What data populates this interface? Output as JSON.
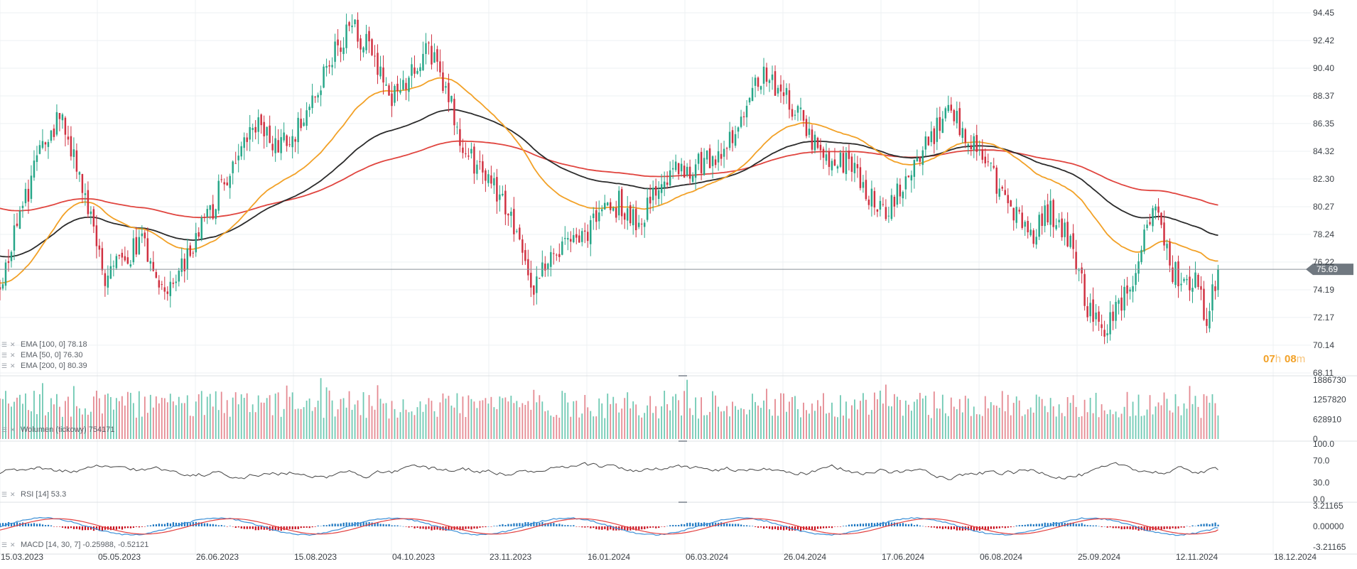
{
  "indicators": {
    "ema100_label": "EMA [100, 0] 78.18",
    "ema50_label": "EMA [50, 0] 76.30",
    "ema200_label": "EMA [200, 0] 80.39",
    "volume_label": "Wolumen (tickowy) 754171",
    "rsi_label": "RSI [14] 53.3",
    "macd_label": "MACD [14, 30, 7] -0.25988, -0.52121"
  },
  "countdown": {
    "hours": "07",
    "h": "h",
    "minutes": "08",
    "m": "m"
  },
  "colors": {
    "up": "#26a688",
    "down": "#d03040",
    "ema50": "#f2a127",
    "ema100": "#2b2b2b",
    "ema200": "#e0453f",
    "grid": "#eef0f3",
    "price_badge": "#707880",
    "macd_hist_pos": "#1f78c1",
    "macd_hist_neg": "#c8101e",
    "macd_line": "#3b8fd6",
    "signal_line": "#e24040"
  },
  "chart_data": [
    {
      "type": "candlestick",
      "name": "price",
      "y_ticks": [
        "94.45",
        "92.42",
        "90.40",
        "88.37",
        "86.35",
        "84.32",
        "82.30",
        "80.27",
        "78.24",
        "76.22",
        "74.19",
        "72.17",
        "70.14",
        "68.11"
      ],
      "y_range": [
        68.11,
        94.45
      ],
      "x_ticks": [
        "15.03.2023",
        "05.05.2023",
        "26.06.2023",
        "15.08.2023",
        "04.10.2023",
        "23.11.2023",
        "16.01.2024",
        "06.03.2024",
        "26.04.2024",
        "17.06.2024",
        "06.08.2024",
        "25.09.2024",
        "12.11.2024",
        "18.12.2024"
      ],
      "x_range": [
        "2023-03-15",
        "2024-12-18"
      ],
      "last_price": "75.69",
      "price_path": [
        [
          "2023-03-15",
          74.5
        ],
        [
          "2023-03-25",
          79.5
        ],
        [
          "2023-04-05",
          85.0
        ],
        [
          "2023-04-15",
          86.8
        ],
        [
          "2023-04-25",
          82.0
        ],
        [
          "2023-05-05",
          75.0
        ],
        [
          "2023-05-15",
          76.5
        ],
        [
          "2023-05-25",
          77.5
        ],
        [
          "2023-06-05",
          73.5
        ],
        [
          "2023-06-15",
          76.5
        ],
        [
          "2023-06-26",
          79.5
        ],
        [
          "2023-07-10",
          84.0
        ],
        [
          "2023-07-20",
          86.5
        ],
        [
          "2023-08-01",
          84.5
        ],
        [
          "2023-08-15",
          87.0
        ],
        [
          "2023-08-25",
          91.0
        ],
        [
          "2023-09-05",
          93.5
        ],
        [
          "2023-09-15",
          91.5
        ],
        [
          "2023-09-25",
          88.0
        ],
        [
          "2023-10-04",
          89.5
        ],
        [
          "2023-10-14",
          92.0
        ],
        [
          "2023-10-24",
          88.0
        ],
        [
          "2023-11-01",
          84.0
        ],
        [
          "2023-11-10",
          82.5
        ],
        [
          "2023-11-23",
          80.0
        ],
        [
          "2023-12-05",
          74.5
        ],
        [
          "2023-12-15",
          77.0
        ],
        [
          "2023-12-28",
          77.5
        ],
        [
          "2024-01-05",
          79.5
        ],
        [
          "2024-01-16",
          80.5
        ],
        [
          "2024-01-26",
          79.0
        ],
        [
          "2024-02-05",
          82.0
        ],
        [
          "2024-02-15",
          83.0
        ],
        [
          "2024-02-25",
          83.5
        ],
        [
          "2024-03-06",
          84.0
        ],
        [
          "2024-03-16",
          86.0
        ],
        [
          "2024-03-26",
          90.0
        ],
        [
          "2024-04-05",
          89.0
        ],
        [
          "2024-04-16",
          86.5
        ],
        [
          "2024-04-26",
          84.0
        ],
        [
          "2024-05-06",
          83.5
        ],
        [
          "2024-05-16",
          82.0
        ],
        [
          "2024-05-26",
          79.5
        ],
        [
          "2024-06-06",
          82.5
        ],
        [
          "2024-06-17",
          85.0
        ],
        [
          "2024-06-27",
          87.0
        ],
        [
          "2024-07-07",
          85.5
        ],
        [
          "2024-07-17",
          83.0
        ],
        [
          "2024-07-27",
          80.5
        ],
        [
          "2024-08-06",
          78.0
        ],
        [
          "2024-08-16",
          80.0
        ],
        [
          "2024-08-26",
          78.0
        ],
        [
          "2024-09-05",
          72.5
        ],
        [
          "2024-09-12",
          71.0
        ],
        [
          "2024-09-20",
          73.5
        ],
        [
          "2024-09-25",
          74.0
        ],
        [
          "2024-10-02",
          78.0
        ],
        [
          "2024-10-08",
          80.5
        ],
        [
          "2024-10-15",
          76.0
        ],
        [
          "2024-10-22",
          74.5
        ],
        [
          "2024-10-28",
          75.5
        ],
        [
          "2024-11-02",
          72.0
        ],
        [
          "2024-11-08",
          75.69
        ]
      ],
      "series": [
        {
          "name": "EMA [50, 0]",
          "last": 76.3
        },
        {
          "name": "EMA [100, 0]",
          "last": 78.18
        },
        {
          "name": "EMA [200, 0]",
          "last": 80.39
        }
      ]
    },
    {
      "type": "bar",
      "name": "volume",
      "y_ticks": [
        "1886730",
        "1257820",
        "628910",
        "0"
      ],
      "y_range": [
        0,
        1886730
      ],
      "last": 754171
    },
    {
      "type": "line",
      "name": "RSI [14]",
      "y_ticks": [
        "100.0",
        "70.0",
        "30.0",
        "0.0"
      ],
      "y_range": [
        0,
        100
      ],
      "last": 53.3
    },
    {
      "type": "bar+line",
      "name": "MACD [14, 30, 7]",
      "y_ticks": [
        "3.21165",
        "0.00000",
        "-3.21165"
      ],
      "y_range": [
        -3.21165,
        3.21165
      ],
      "last_macd": -0.25988,
      "last_signal": -0.52121
    }
  ]
}
